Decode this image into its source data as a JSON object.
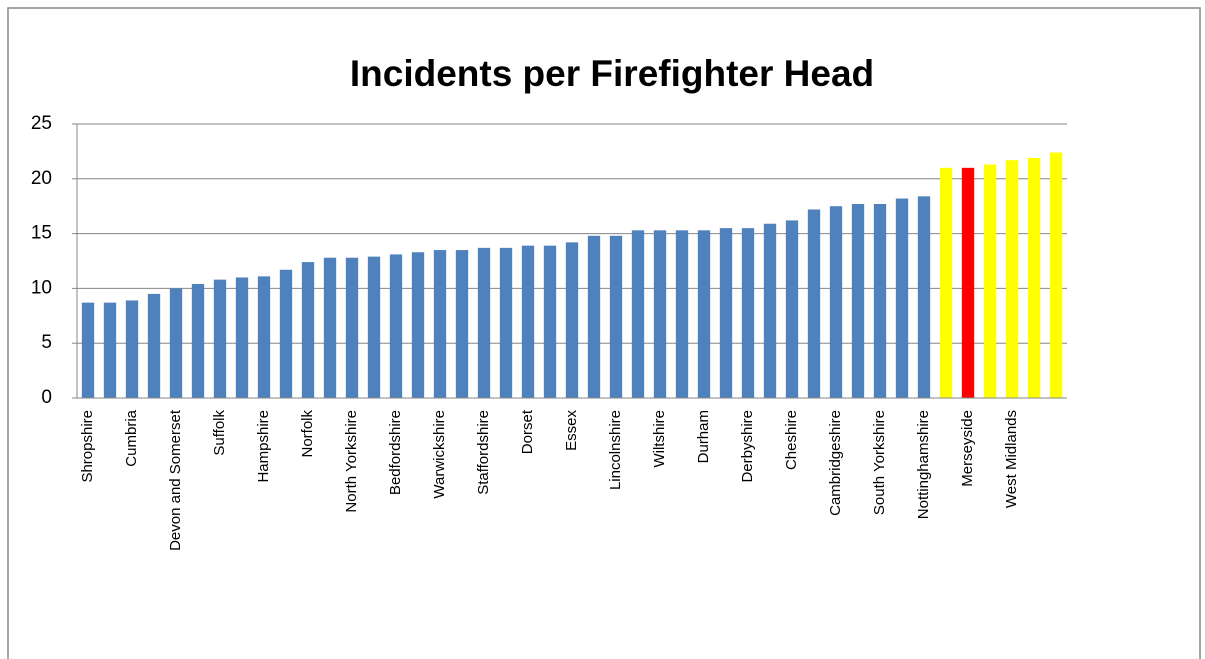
{
  "chart_data": {
    "type": "bar",
    "title": "Incidents per Firefighter Head",
    "categories": [
      "Shropshire",
      null,
      "Cumbria",
      null,
      "Devon and Somerset",
      null,
      "Suffolk",
      null,
      "Hampshire",
      null,
      "Norfolk",
      null,
      "North Yorkshire",
      null,
      "Bedfordshire",
      null,
      "Warwickshire",
      null,
      "Staffordshire",
      null,
      "Dorset",
      null,
      "Essex",
      null,
      "Lincolnshire",
      null,
      "Wiltshire",
      null,
      "Durham",
      null,
      "Derbyshire",
      null,
      "Cheshire",
      null,
      "Cambridgeshire",
      null,
      "South Yorkshire",
      null,
      "Nottinghamshire",
      null,
      "Merseyside",
      null,
      "West Midlands",
      null,
      null
    ],
    "values": [
      8.7,
      8.7,
      8.9,
      9.5,
      10.0,
      10.4,
      10.8,
      11.0,
      11.1,
      11.7,
      12.4,
      12.8,
      12.8,
      12.9,
      13.1,
      13.3,
      13.5,
      13.5,
      13.7,
      13.7,
      13.9,
      13.9,
      14.2,
      14.8,
      14.8,
      15.3,
      15.3,
      15.3,
      15.3,
      15.5,
      15.5,
      15.9,
      16.2,
      17.2,
      17.5,
      17.7,
      17.7,
      18.2,
      18.4,
      21.0,
      21.0,
      21.3,
      21.7,
      21.9,
      22.4
    ],
    "colors": [
      "#4f81bd",
      "#4f81bd",
      "#4f81bd",
      "#4f81bd",
      "#4f81bd",
      "#4f81bd",
      "#4f81bd",
      "#4f81bd",
      "#4f81bd",
      "#4f81bd",
      "#4f81bd",
      "#4f81bd",
      "#4f81bd",
      "#4f81bd",
      "#4f81bd",
      "#4f81bd",
      "#4f81bd",
      "#4f81bd",
      "#4f81bd",
      "#4f81bd",
      "#4f81bd",
      "#4f81bd",
      "#4f81bd",
      "#4f81bd",
      "#4f81bd",
      "#4f81bd",
      "#4f81bd",
      "#4f81bd",
      "#4f81bd",
      "#4f81bd",
      "#4f81bd",
      "#4f81bd",
      "#4f81bd",
      "#4f81bd",
      "#4f81bd",
      "#4f81bd",
      "#4f81bd",
      "#4f81bd",
      "#4f81bd",
      "#ffff00",
      "#ff0000",
      "#ffff00",
      "#ffff00",
      "#ffff00",
      "#ffff00"
    ],
    "ylim": [
      0,
      25
    ],
    "yticks": [
      0,
      5,
      10,
      15,
      20,
      25
    ],
    "grid": true
  }
}
